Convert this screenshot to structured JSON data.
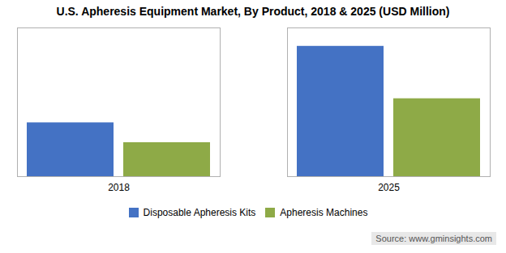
{
  "chart_data": {
    "type": "bar",
    "title": "U.S. Apheresis Equipment Market, By Product, 2018 & 2025 (USD Million)",
    "categories": [
      "2018",
      "2025"
    ],
    "series": [
      {
        "name": "Disposable Apheresis Kits",
        "color": "#4472C4",
        "values": [
          38,
          92
        ]
      },
      {
        "name": "Apheresis Machines",
        "color": "#8EAA47",
        "values": [
          24,
          55
        ]
      }
    ],
    "ylim": [
      0,
      105
    ],
    "yticks": [],
    "grid": false,
    "legend": "bottom",
    "tick_labels": "x",
    "annotations": [
      "Source: www.gminsights.com"
    ]
  }
}
